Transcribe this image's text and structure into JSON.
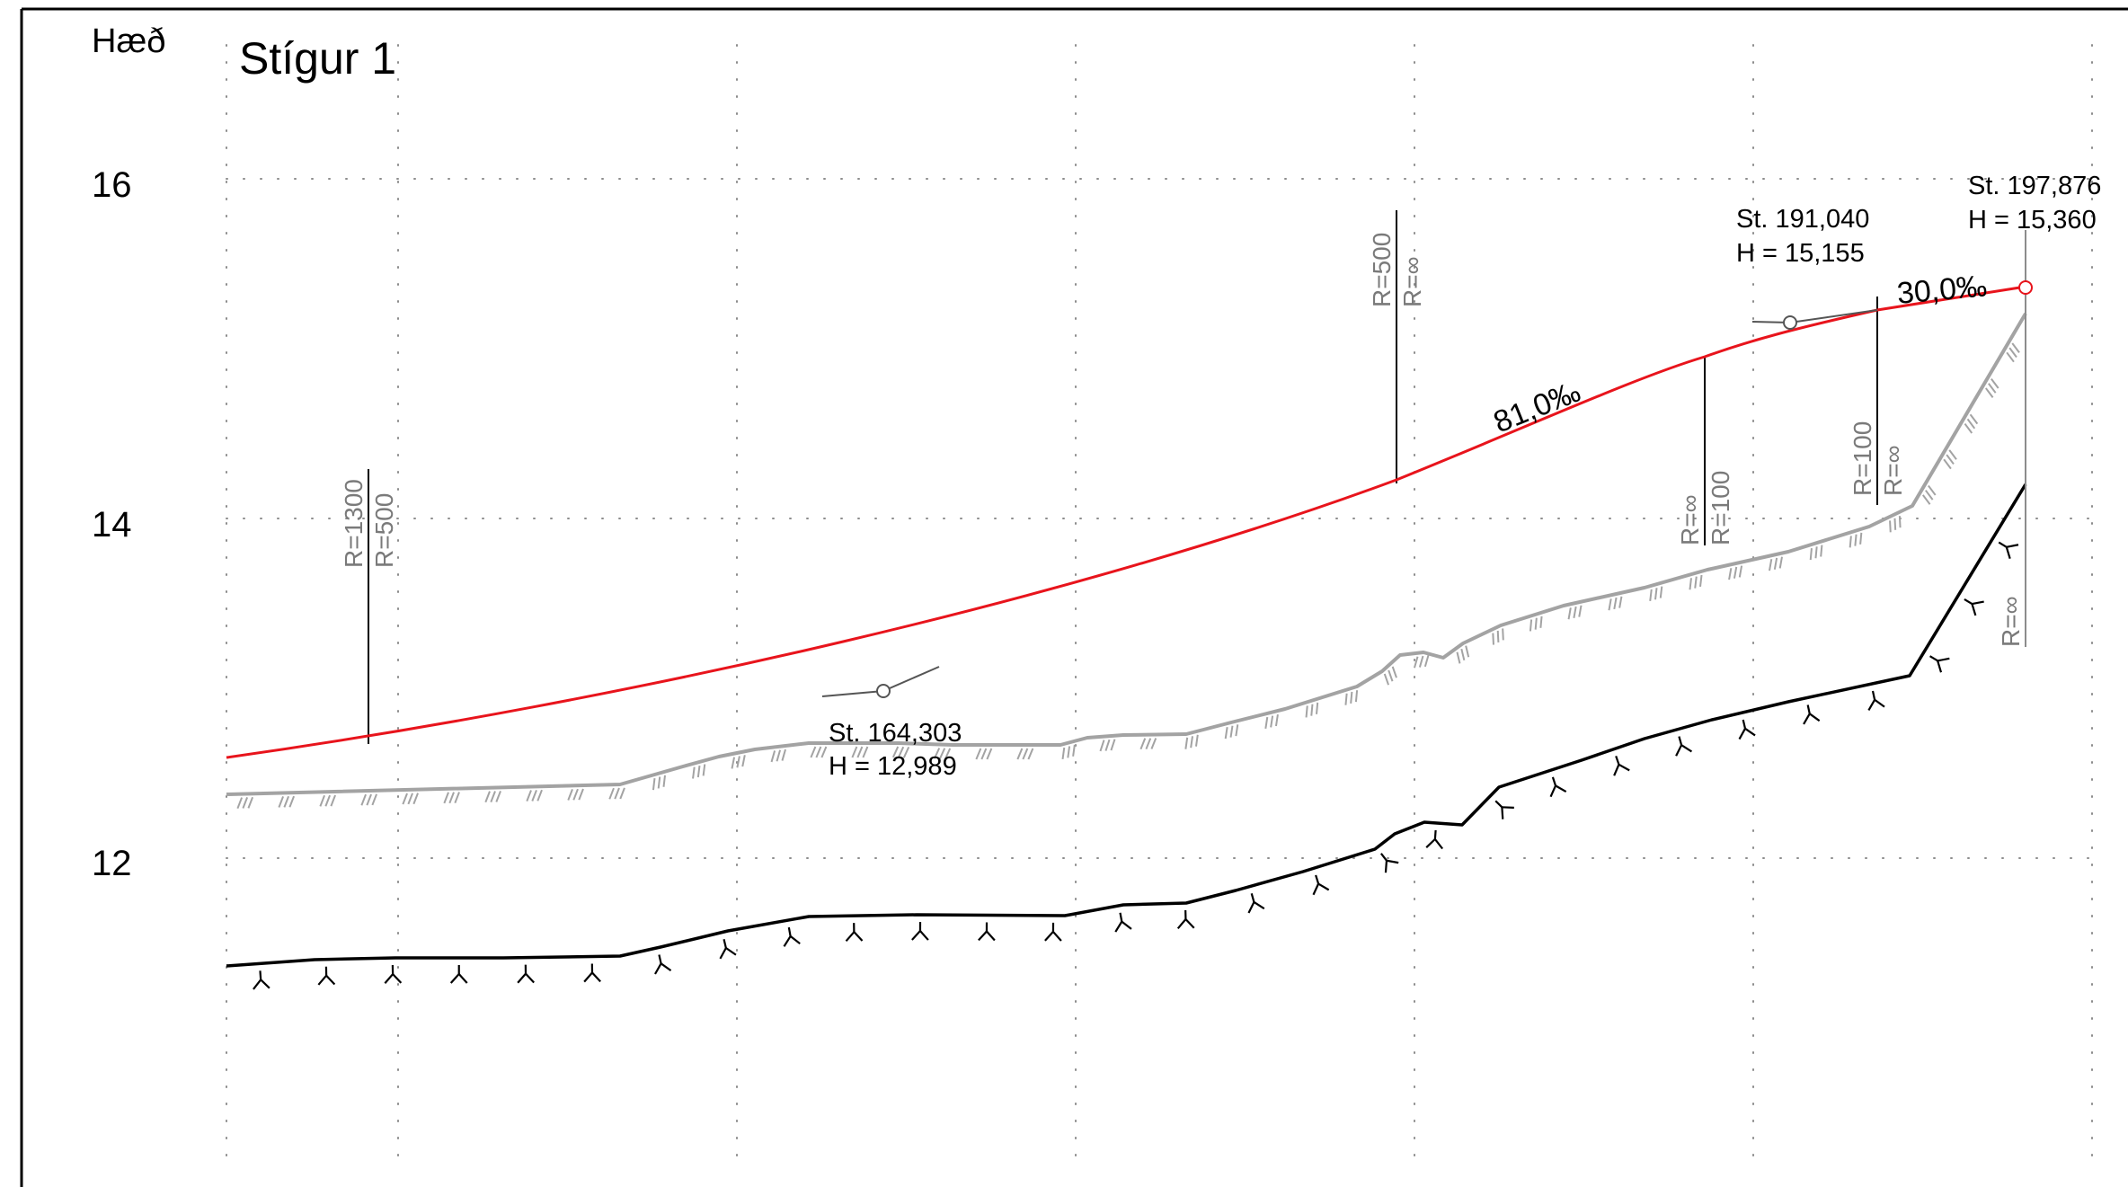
{
  "title": "Stígur 1",
  "y_axis_label": "Hæð",
  "y_ticks": [
    "16",
    "14",
    "12"
  ],
  "slopes": [
    {
      "text": "81,0‰",
      "angle": -22
    },
    {
      "text": "30,0‰",
      "angle": -5
    }
  ],
  "stations": [
    {
      "station": "St. 164,303",
      "height": "H = 12,989"
    },
    {
      "station": "St. 191,040",
      "height": "H = 15,155"
    },
    {
      "station": "St. 197,876",
      "height": "H = 15,360"
    }
  ],
  "curve_radii": [
    {
      "lines": [
        "R=1300",
        "R=500"
      ],
      "color": "#7a7a7a"
    },
    {
      "lines": [
        "R=500",
        "R=∞"
      ],
      "color": "#7a7a7a"
    },
    {
      "lines": [
        "R=∞",
        "R=100"
      ],
      "color": "#7a7a7a"
    },
    {
      "lines": [
        "R=100",
        "R=∞"
      ],
      "color": "#7a7a7a"
    },
    {
      "lines": [
        "R=∞"
      ],
      "color": "#7a7a7a"
    }
  ],
  "colors": {
    "design_line": "#e8141c",
    "ground_line": "#a3a3a3",
    "bedrock_line": "#000000",
    "grid": "#8c8c8c"
  },
  "line_types": {
    "design_line": "red",
    "ground_line": "ground-hatch",
    "bedrock_line": "bedrock-tick"
  }
}
